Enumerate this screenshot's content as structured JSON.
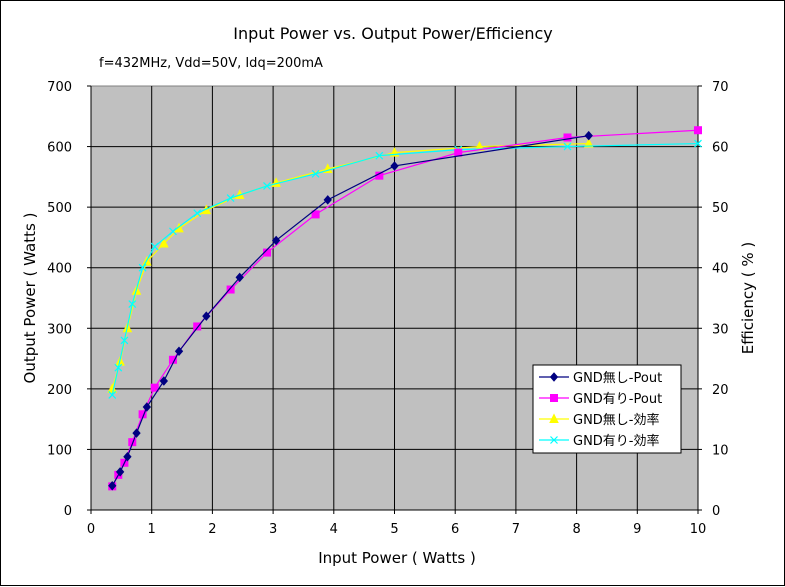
{
  "chart_data": {
    "type": "line",
    "title": "Input Power vs. Output Power/Efficiency",
    "subtitle": "f=432MHz, Vdd=50V, Idq=200mA",
    "xlabel": "Input Power ( Watts )",
    "ylabel": "Output Power ( Watts )",
    "y2label": "Efficiency ( % )",
    "xlim": [
      0,
      10
    ],
    "ylim": [
      0,
      700
    ],
    "y2lim": [
      0,
      70
    ],
    "x_ticks": [
      "0",
      "1",
      "2",
      "3",
      "4",
      "5",
      "6",
      "7",
      "8",
      "9",
      "10"
    ],
    "y_ticks": [
      "0",
      "100",
      "200",
      "300",
      "400",
      "500",
      "600",
      "700"
    ],
    "y2_ticks": [
      "0",
      "10",
      "20",
      "30",
      "40",
      "50",
      "60",
      "70"
    ],
    "grid": true,
    "legend_position": "lower-right",
    "series": [
      {
        "name": "GND無し-Pout",
        "axis": "left",
        "color": "#000080",
        "marker": "diamond",
        "x": [
          0.35,
          0.48,
          0.6,
          0.75,
          0.92,
          1.2,
          1.45,
          1.9,
          2.45,
          3.05,
          3.9,
          5.0,
          8.2
        ],
        "y": [
          40,
          63,
          88,
          127,
          170,
          213,
          262,
          320,
          384,
          445,
          512,
          568,
          618
        ]
      },
      {
        "name": "GND有り-Pout",
        "axis": "left",
        "color": "#ff00ff",
        "marker": "square",
        "x": [
          0.35,
          0.45,
          0.55,
          0.68,
          0.85,
          1.05,
          1.35,
          1.75,
          2.3,
          2.9,
          3.7,
          4.75,
          6.05,
          7.85,
          10.0
        ],
        "y": [
          39,
          58,
          78,
          112,
          158,
          202,
          248,
          303,
          364,
          425,
          488,
          552,
          590,
          615,
          627
        ]
      },
      {
        "name": "GND無し-効率",
        "axis": "right",
        "color": "#ffff00",
        "marker": "triangle",
        "x": [
          0.35,
          0.48,
          0.6,
          0.75,
          0.92,
          1.2,
          1.45,
          1.9,
          2.45,
          3.05,
          3.9,
          5.0,
          6.4,
          8.2
        ],
        "y": [
          20,
          24.5,
          30,
          36.2,
          41,
          44,
          46.5,
          49.5,
          52,
          54,
          56.3,
          59,
          60,
          60.5
        ]
      },
      {
        "name": "GND有り-効率",
        "axis": "right",
        "color": "#00ffff",
        "marker": "x",
        "x": [
          0.35,
          0.45,
          0.55,
          0.68,
          0.85,
          1.05,
          1.35,
          1.75,
          2.3,
          2.9,
          3.7,
          4.75,
          6.05,
          7.85,
          10.0
        ],
        "y": [
          19,
          23.5,
          28,
          34,
          40,
          43.5,
          46,
          49,
          51.5,
          53.5,
          55.5,
          58.5,
          59.5,
          60,
          60.5
        ]
      }
    ]
  }
}
